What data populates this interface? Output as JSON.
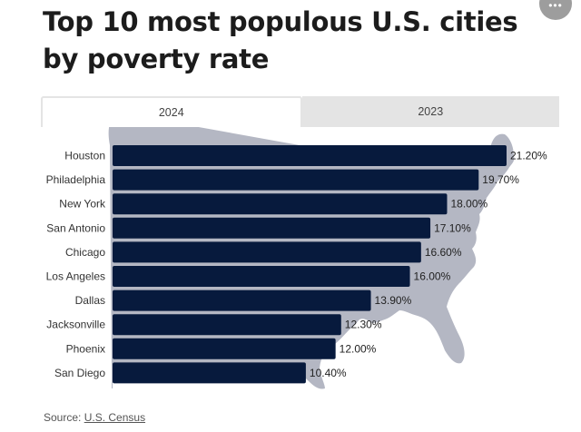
{
  "header": {
    "title": "Top 10 most populous U.S. cities by poverty rate",
    "more_button_glyph": "•••",
    "more_button_icon": "more-options-icon"
  },
  "tabs": [
    {
      "label": "2024",
      "active": true
    },
    {
      "label": "2023",
      "active": false
    }
  ],
  "background_icon": "us-map-silhouette",
  "colors": {
    "bar": "#071a3d",
    "map": "#b4b7c3",
    "text": "#222222",
    "tab_inactive": "#e4e4e4"
  },
  "chart_data": {
    "type": "bar",
    "orientation": "horizontal",
    "title": "Top 10 most populous U.S. cities by poverty rate",
    "xlabel": "",
    "ylabel": "",
    "categories": [
      "Houston",
      "Philadelphia",
      "New York",
      "San Antonio",
      "Chicago",
      "Los Angeles",
      "Dallas",
      "Jacksonville",
      "Phoenix",
      "San Diego"
    ],
    "values": [
      21.2,
      19.7,
      18.0,
      17.1,
      16.6,
      16.0,
      13.9,
      12.3,
      12.0,
      10.4
    ],
    "data_labels": [
      "21.20%",
      "19.70%",
      "18.00%",
      "17.10%",
      "16.60%",
      "16.00%",
      "13.90%",
      "12.30%",
      "12.00%",
      "10.40%"
    ],
    "xlim": [
      0,
      21.2
    ],
    "grid": false,
    "legend": "none",
    "selected_year": "2024"
  },
  "footer": {
    "source_prefix": "Source: ",
    "source_link": "U.S. Census"
  }
}
